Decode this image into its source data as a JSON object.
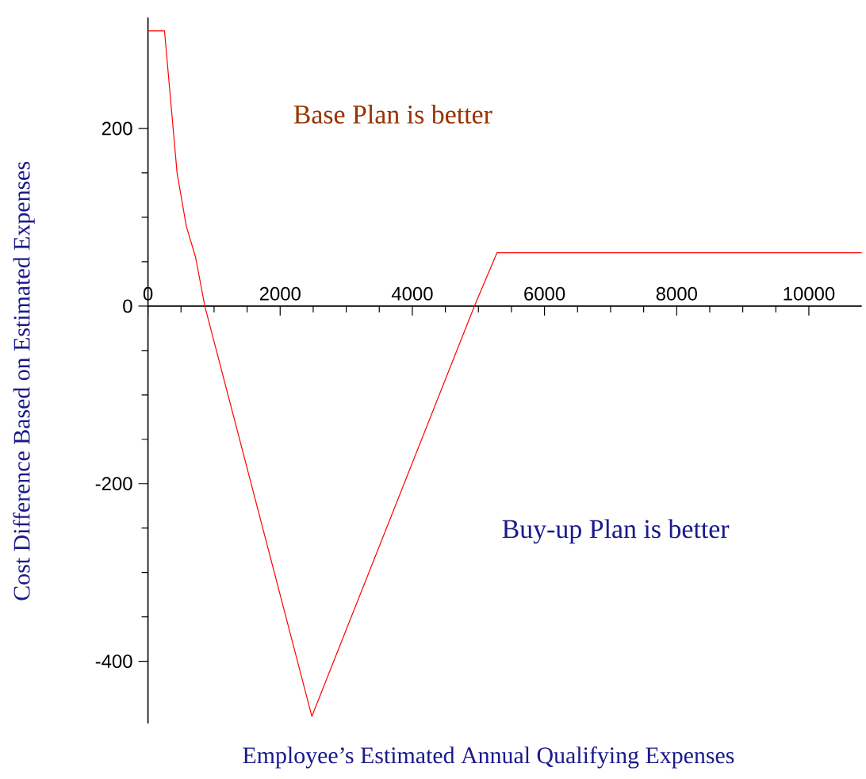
{
  "chart_data": {
    "type": "line",
    "xlabel": "Employee’s Estimated Annual Qualifying Expenses",
    "ylabel": "Cost Difference Based on Estimated Expenses",
    "annotations": [
      "Base Plan is better",
      "Buy-up Plan is better"
    ],
    "xlim": [
      0,
      10800
    ],
    "ylim": [
      -470,
      325
    ],
    "xticks": [
      0,
      2000,
      4000,
      6000,
      8000,
      10000
    ],
    "yticks": [
      -400,
      -200,
      0,
      200
    ],
    "grid": false,
    "marker": "none",
    "line_style": "solid",
    "series": [
      {
        "color": "#ff0000",
        "x": [
          0,
          250,
          440,
          580,
          720,
          860,
          2480,
          4940,
          5280,
          10800
        ],
        "values": [
          310,
          310,
          150,
          90,
          55,
          0,
          -462,
          0,
          60,
          60
        ]
      }
    ]
  }
}
